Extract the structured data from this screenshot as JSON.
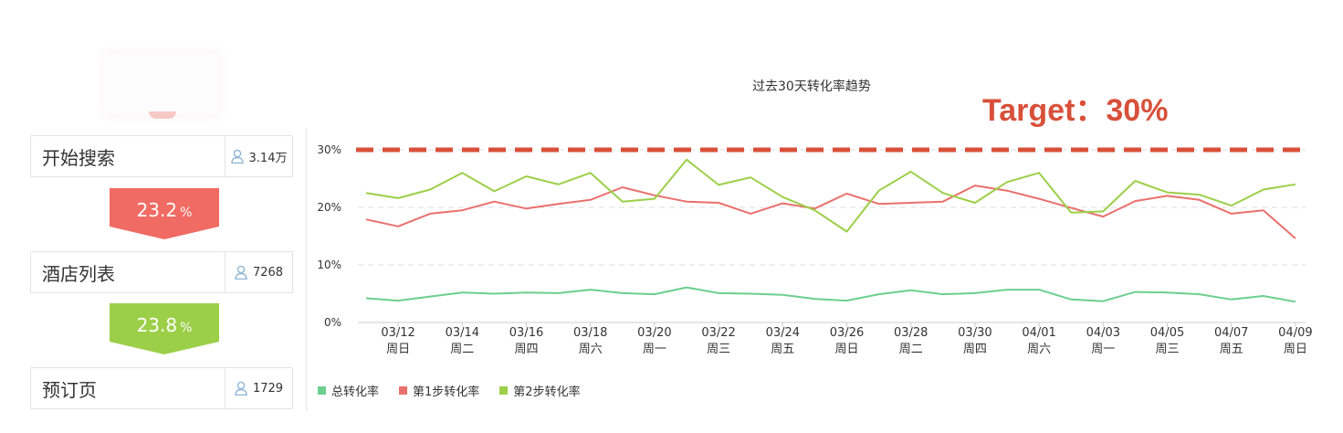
{
  "funnel": {
    "stages": [
      {
        "name": "开始搜索",
        "count": "3.14万"
      },
      {
        "name": "酒店列表",
        "count": "7268"
      },
      {
        "name": "预订页",
        "count": "1729"
      }
    ],
    "rates": [
      {
        "value": "23.2",
        "unit": "%",
        "color": "#f06b63"
      },
      {
        "value": "23.8",
        "unit": "%",
        "color": "#9ccf48"
      }
    ]
  },
  "chart_title": "过去30天转化率趋势",
  "target_label": "Target：30%",
  "chart_data": {
    "type": "line",
    "title": "过去30天转化率趋势",
    "ylim": [
      0,
      30
    ],
    "yticks": [
      "0%",
      "10%",
      "20%",
      "30%"
    ],
    "grid": true,
    "legend_position": "bottom-left",
    "target": 30,
    "target_color": "#d8503a",
    "x_ticks": [
      {
        "date": "03/12",
        "weekday": "周日"
      },
      {
        "date": "03/14",
        "weekday": "周二"
      },
      {
        "date": "03/16",
        "weekday": "周四"
      },
      {
        "date": "03/18",
        "weekday": "周六"
      },
      {
        "date": "03/20",
        "weekday": "周一"
      },
      {
        "date": "03/22",
        "weekday": "周三"
      },
      {
        "date": "03/24",
        "weekday": "周五"
      },
      {
        "date": "03/26",
        "weekday": "周日"
      },
      {
        "date": "03/28",
        "weekday": "周二"
      },
      {
        "date": "03/30",
        "weekday": "周四"
      },
      {
        "date": "04/01",
        "weekday": "周六"
      },
      {
        "date": "04/03",
        "weekday": "周一"
      },
      {
        "date": "04/05",
        "weekday": "周三"
      },
      {
        "date": "04/07",
        "weekday": "周五"
      },
      {
        "date": "04/09",
        "weekday": "周日"
      }
    ],
    "x": [
      "03/11",
      "03/12",
      "03/13",
      "03/14",
      "03/15",
      "03/16",
      "03/17",
      "03/18",
      "03/19",
      "03/20",
      "03/21",
      "03/22",
      "03/23",
      "03/24",
      "03/25",
      "03/26",
      "03/27",
      "03/28",
      "03/29",
      "03/30",
      "03/31",
      "04/01",
      "04/02",
      "04/03",
      "04/04",
      "04/05",
      "04/06",
      "04/07",
      "04/08",
      "04/09"
    ],
    "series": [
      {
        "name": "总转化率",
        "color": "#6ccf8e",
        "values": [
          4.2,
          3.8,
          4.5,
          5.2,
          5.0,
          5.2,
          5.1,
          5.7,
          5.1,
          4.9,
          6.1,
          5.1,
          5.0,
          4.8,
          4.1,
          3.8,
          4.9,
          5.6,
          4.9,
          5.1,
          5.7,
          5.7,
          4.0,
          3.7,
          5.3,
          5.2,
          4.9,
          4.0,
          4.6,
          3.6
        ]
      },
      {
        "name": "第1步转化率",
        "color": "#e9706c",
        "values": [
          17.9,
          16.7,
          18.9,
          19.5,
          21.0,
          19.8,
          20.6,
          21.3,
          23.5,
          22.1,
          21.0,
          20.8,
          18.9,
          20.7,
          19.8,
          22.4,
          20.6,
          20.8,
          21.0,
          23.8,
          22.9,
          21.5,
          19.9,
          18.4,
          21.1,
          22.0,
          21.3,
          18.9,
          19.5,
          14.6
        ]
      },
      {
        "name": "第2步转化率",
        "color": "#9ccf48",
        "values": [
          22.5,
          21.6,
          23.1,
          26.0,
          22.8,
          25.4,
          24.0,
          26.0,
          21.0,
          21.5,
          28.3,
          23.9,
          25.2,
          21.8,
          19.5,
          15.8,
          22.9,
          26.2,
          22.5,
          20.8,
          24.4,
          26.0,
          19.1,
          19.3,
          24.6,
          22.6,
          22.2,
          20.3,
          23.1,
          24.0
        ]
      }
    ]
  }
}
